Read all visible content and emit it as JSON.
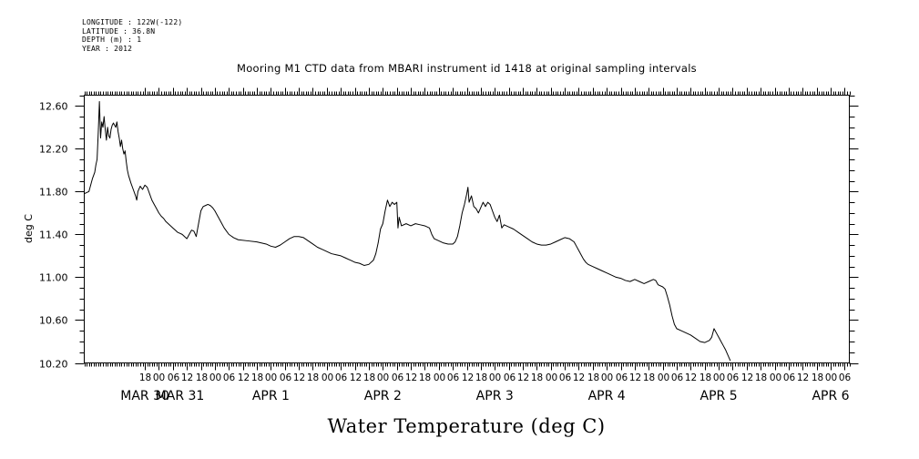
{
  "header": {
    "meta_lines": [
      "LONGITUDE : 122W(-122)",
      "LATITUDE : 36.8N",
      "DEPTH (m) : 1",
      "YEAR : 2012"
    ]
  },
  "chart_data": {
    "type": "line",
    "title": "Mooring M1 CTD data from MBARI instrument id 1418 at original sampling intervals",
    "ylabel": "deg C",
    "xlabel": "Water Temperature (deg C)",
    "ylim": [
      10.2,
      12.7
    ],
    "xlim_hours": [
      -8,
      320
    ],
    "yticks": [
      10.2,
      10.6,
      11.0,
      11.4,
      11.8,
      12.2,
      12.6
    ],
    "ytick_labels": [
      "10.20",
      "10.60",
      "11.00",
      "11.40",
      "11.80",
      "12.20",
      "12.60"
    ],
    "hour_ticks": [
      {
        "t": 18,
        "label": "18"
      },
      {
        "t": 24,
        "label": "00"
      },
      {
        "t": 30,
        "label": "06"
      },
      {
        "t": 36,
        "label": "12"
      },
      {
        "t": 42,
        "label": "18"
      },
      {
        "t": 48,
        "label": "00"
      },
      {
        "t": 54,
        "label": "06"
      },
      {
        "t": 60,
        "label": "12"
      },
      {
        "t": 66,
        "label": "18"
      },
      {
        "t": 72,
        "label": "00"
      },
      {
        "t": 78,
        "label": "06"
      },
      {
        "t": 84,
        "label": "12"
      },
      {
        "t": 90,
        "label": "18"
      },
      {
        "t": 96,
        "label": "00"
      },
      {
        "t": 102,
        "label": "06"
      },
      {
        "t": 108,
        "label": "12"
      },
      {
        "t": 114,
        "label": "18"
      },
      {
        "t": 120,
        "label": "00"
      },
      {
        "t": 126,
        "label": "06"
      },
      {
        "t": 132,
        "label": "12"
      },
      {
        "t": 138,
        "label": "18"
      },
      {
        "t": 144,
        "label": "00"
      },
      {
        "t": 150,
        "label": "06"
      },
      {
        "t": 156,
        "label": "12"
      },
      {
        "t": 162,
        "label": "18"
      },
      {
        "t": 168,
        "label": "00"
      },
      {
        "t": 174,
        "label": "06"
      },
      {
        "t": 180,
        "label": "12"
      },
      {
        "t": 186,
        "label": "18"
      },
      {
        "t": 192,
        "label": "00"
      },
      {
        "t": 198,
        "label": "06"
      },
      {
        "t": 204,
        "label": "12"
      },
      {
        "t": 210,
        "label": "18"
      },
      {
        "t": 216,
        "label": "00"
      },
      {
        "t": 222,
        "label": "06"
      },
      {
        "t": 228,
        "label": "12"
      },
      {
        "t": 234,
        "label": "18"
      },
      {
        "t": 240,
        "label": "00"
      },
      {
        "t": 246,
        "label": "06"
      },
      {
        "t": 252,
        "label": "12"
      },
      {
        "t": 258,
        "label": "18"
      },
      {
        "t": 264,
        "label": "00"
      },
      {
        "t": 270,
        "label": "06"
      },
      {
        "t": 276,
        "label": "12"
      },
      {
        "t": 282,
        "label": "18"
      },
      {
        "t": 288,
        "label": "00"
      },
      {
        "t": 294,
        "label": "06"
      },
      {
        "t": 300,
        "label": "12"
      },
      {
        "t": 306,
        "label": "18"
      },
      {
        "t": 312,
        "label": "00"
      },
      {
        "t": 318,
        "label": "06"
      }
    ],
    "day_labels": [
      {
        "t": 18,
        "label": "MAR 30"
      },
      {
        "t": 33,
        "label": "MAR 31"
      },
      {
        "t": 72,
        "label": "APR  1"
      },
      {
        "t": 120,
        "label": "APR  2"
      },
      {
        "t": 168,
        "label": "APR  3"
      },
      {
        "t": 216,
        "label": "APR  4"
      },
      {
        "t": 264,
        "label": "APR  5"
      },
      {
        "t": 312,
        "label": "APR  6"
      }
    ],
    "series": [
      {
        "color": "#000000",
        "points": [
          [
            -8.0,
            11.78
          ],
          [
            -6.0,
            11.8
          ],
          [
            -4.5,
            11.92
          ],
          [
            -3.5,
            11.98
          ],
          [
            -3.0,
            12.05
          ],
          [
            -2.5,
            12.1
          ],
          [
            -2.0,
            12.35
          ],
          [
            -1.5,
            12.64
          ],
          [
            -1.0,
            12.3
          ],
          [
            -0.5,
            12.45
          ],
          [
            0.0,
            12.4
          ],
          [
            0.5,
            12.5
          ],
          [
            1.0,
            12.38
          ],
          [
            1.5,
            12.28
          ],
          [
            2.0,
            12.4
          ],
          [
            2.5,
            12.32
          ],
          [
            3.0,
            12.3
          ],
          [
            3.5,
            12.38
          ],
          [
            4.0,
            12.42
          ],
          [
            4.5,
            12.44
          ],
          [
            5.0,
            12.42
          ],
          [
            5.5,
            12.4
          ],
          [
            6.0,
            12.45
          ],
          [
            6.5,
            12.36
          ],
          [
            7.0,
            12.3
          ],
          [
            7.5,
            12.22
          ],
          [
            8.0,
            12.28
          ],
          [
            8.5,
            12.2
          ],
          [
            9.0,
            12.15
          ],
          [
            9.5,
            12.18
          ],
          [
            10.0,
            12.08
          ],
          [
            10.5,
            12.0
          ],
          [
            11.0,
            11.95
          ],
          [
            12.0,
            11.88
          ],
          [
            13.0,
            11.82
          ],
          [
            14.0,
            11.76
          ],
          [
            14.5,
            11.72
          ],
          [
            15.0,
            11.8
          ],
          [
            16.0,
            11.85
          ],
          [
            17.0,
            11.82
          ],
          [
            18.0,
            11.86
          ],
          [
            19.0,
            11.84
          ],
          [
            20.0,
            11.78
          ],
          [
            21.0,
            11.72
          ],
          [
            22.0,
            11.68
          ],
          [
            23.0,
            11.64
          ],
          [
            24.0,
            11.6
          ],
          [
            25.0,
            11.57
          ],
          [
            26.0,
            11.55
          ],
          [
            27.0,
            11.52
          ],
          [
            28.0,
            11.5
          ],
          [
            29.0,
            11.48
          ],
          [
            30.0,
            11.46
          ],
          [
            31.0,
            11.44
          ],
          [
            32.0,
            11.42
          ],
          [
            33.0,
            11.41
          ],
          [
            34.0,
            11.4
          ],
          [
            35.0,
            11.38
          ],
          [
            36.0,
            11.36
          ],
          [
            37.0,
            11.4
          ],
          [
            38.0,
            11.44
          ],
          [
            39.0,
            11.43
          ],
          [
            40.0,
            11.38
          ],
          [
            41.0,
            11.5
          ],
          [
            42.0,
            11.62
          ],
          [
            43.0,
            11.66
          ],
          [
            44.0,
            11.67
          ],
          [
            45.0,
            11.68
          ],
          [
            46.0,
            11.67
          ],
          [
            47.0,
            11.65
          ],
          [
            48.0,
            11.62
          ],
          [
            49.0,
            11.58
          ],
          [
            50.0,
            11.54
          ],
          [
            51.0,
            11.5
          ],
          [
            52.0,
            11.46
          ],
          [
            54.0,
            11.4
          ],
          [
            56.0,
            11.37
          ],
          [
            58.0,
            11.35
          ],
          [
            62.0,
            11.34
          ],
          [
            66.0,
            11.33
          ],
          [
            70.0,
            11.31
          ],
          [
            72.0,
            11.29
          ],
          [
            74.0,
            11.28
          ],
          [
            76.0,
            11.3
          ],
          [
            78.0,
            11.33
          ],
          [
            80.0,
            11.36
          ],
          [
            82.0,
            11.38
          ],
          [
            84.0,
            11.38
          ],
          [
            86.0,
            11.37
          ],
          [
            88.0,
            11.34
          ],
          [
            90.0,
            11.31
          ],
          [
            92.0,
            11.28
          ],
          [
            94.0,
            11.26
          ],
          [
            96.0,
            11.24
          ],
          [
            98.0,
            11.22
          ],
          [
            100.0,
            11.21
          ],
          [
            102.0,
            11.2
          ],
          [
            104.0,
            11.18
          ],
          [
            106.0,
            11.16
          ],
          [
            108.0,
            11.14
          ],
          [
            110.0,
            11.13
          ],
          [
            112.0,
            11.11
          ],
          [
            114.0,
            11.12
          ],
          [
            116.0,
            11.16
          ],
          [
            117.0,
            11.22
          ],
          [
            118.0,
            11.32
          ],
          [
            119.0,
            11.45
          ],
          [
            120.0,
            11.5
          ],
          [
            121.0,
            11.62
          ],
          [
            122.0,
            11.72
          ],
          [
            123.0,
            11.66
          ],
          [
            124.0,
            11.7
          ],
          [
            125.0,
            11.68
          ],
          [
            126.0,
            11.7
          ],
          [
            126.5,
            11.46
          ],
          [
            127.0,
            11.56
          ],
          [
            128.0,
            11.48
          ],
          [
            130.0,
            11.5
          ],
          [
            132.0,
            11.48
          ],
          [
            134.0,
            11.5
          ],
          [
            136.0,
            11.49
          ],
          [
            138.0,
            11.48
          ],
          [
            140.0,
            11.46
          ],
          [
            141.0,
            11.4
          ],
          [
            142.0,
            11.36
          ],
          [
            144.0,
            11.34
          ],
          [
            146.0,
            11.32
          ],
          [
            148.0,
            11.31
          ],
          [
            150.0,
            11.31
          ],
          [
            151.0,
            11.33
          ],
          [
            152.0,
            11.38
          ],
          [
            153.0,
            11.48
          ],
          [
            154.0,
            11.6
          ],
          [
            155.0,
            11.68
          ],
          [
            156.0,
            11.78
          ],
          [
            156.5,
            11.84
          ],
          [
            157.0,
            11.7
          ],
          [
            158.0,
            11.76
          ],
          [
            159.0,
            11.66
          ],
          [
            160.0,
            11.64
          ],
          [
            161.0,
            11.6
          ],
          [
            162.0,
            11.65
          ],
          [
            163.0,
            11.7
          ],
          [
            164.0,
            11.66
          ],
          [
            165.0,
            11.7
          ],
          [
            166.0,
            11.68
          ],
          [
            167.0,
            11.62
          ],
          [
            168.0,
            11.56
          ],
          [
            169.0,
            11.52
          ],
          [
            170.0,
            11.58
          ],
          [
            171.0,
            11.46
          ],
          [
            172.0,
            11.49
          ],
          [
            174.0,
            11.47
          ],
          [
            176.0,
            11.45
          ],
          [
            178.0,
            11.42
          ],
          [
            180.0,
            11.39
          ],
          [
            182.0,
            11.36
          ],
          [
            184.0,
            11.33
          ],
          [
            186.0,
            11.31
          ],
          [
            188.0,
            11.3
          ],
          [
            190.0,
            11.3
          ],
          [
            192.0,
            11.31
          ],
          [
            194.0,
            11.33
          ],
          [
            196.0,
            11.35
          ],
          [
            198.0,
            11.37
          ],
          [
            200.0,
            11.36
          ],
          [
            202.0,
            11.33
          ],
          [
            203.0,
            11.29
          ],
          [
            204.0,
            11.25
          ],
          [
            205.0,
            11.21
          ],
          [
            206.0,
            11.17
          ],
          [
            207.0,
            11.14
          ],
          [
            208.0,
            11.12
          ],
          [
            210.0,
            11.1
          ],
          [
            212.0,
            11.08
          ],
          [
            214.0,
            11.06
          ],
          [
            216.0,
            11.04
          ],
          [
            218.0,
            11.02
          ],
          [
            220.0,
            11.0
          ],
          [
            222.0,
            10.99
          ],
          [
            224.0,
            10.97
          ],
          [
            226.0,
            10.96
          ],
          [
            228.0,
            10.98
          ],
          [
            230.0,
            10.96
          ],
          [
            232.0,
            10.94
          ],
          [
            234.0,
            10.96
          ],
          [
            236.0,
            10.98
          ],
          [
            237.0,
            10.97
          ],
          [
            238.0,
            10.93
          ],
          [
            240.0,
            10.91
          ],
          [
            241.0,
            10.89
          ],
          [
            242.0,
            10.82
          ],
          [
            243.0,
            10.74
          ],
          [
            244.0,
            10.64
          ],
          [
            245.0,
            10.56
          ],
          [
            246.0,
            10.52
          ],
          [
            248.0,
            10.5
          ],
          [
            250.0,
            10.48
          ],
          [
            252.0,
            10.46
          ],
          [
            254.0,
            10.43
          ],
          [
            256.0,
            10.4
          ],
          [
            258.0,
            10.39
          ],
          [
            259.0,
            10.4
          ],
          [
            260.0,
            10.41
          ],
          [
            261.0,
            10.44
          ],
          [
            262.0,
            10.52
          ],
          [
            263.0,
            10.48
          ],
          [
            264.0,
            10.44
          ],
          [
            265.0,
            10.4
          ],
          [
            266.0,
            10.36
          ],
          [
            267.0,
            10.32
          ],
          [
            268.0,
            10.27
          ],
          [
            269.0,
            10.22
          ]
        ]
      }
    ]
  }
}
